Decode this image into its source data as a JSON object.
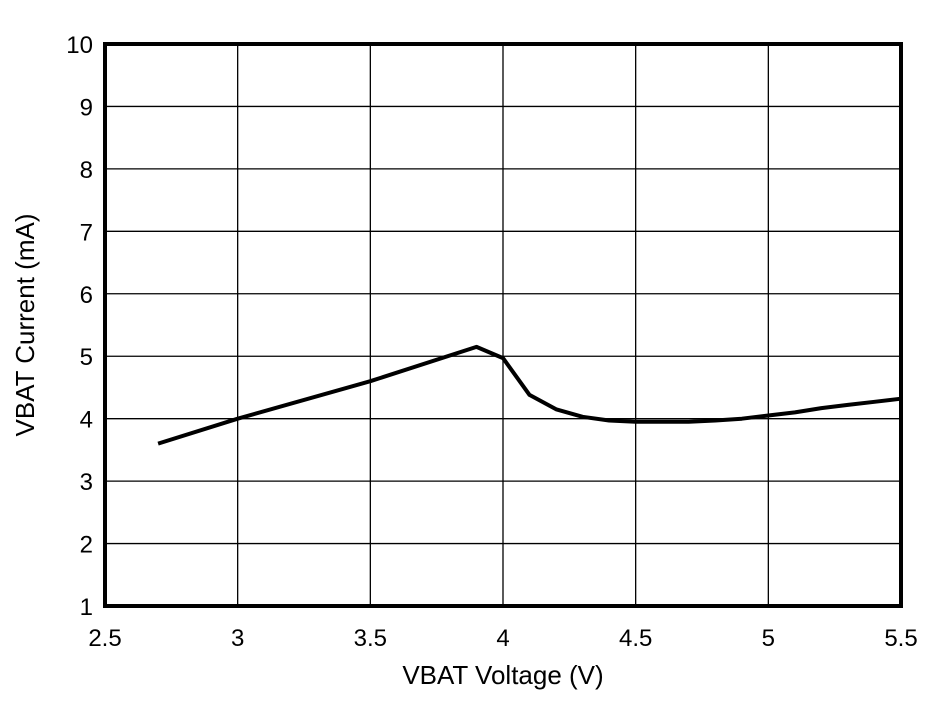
{
  "chart_data": {
    "type": "line",
    "title": "",
    "xlabel": "VBAT Voltage (V)",
    "ylabel": "VBAT Current (mA)",
    "xlim": [
      2.5,
      5.5
    ],
    "ylim": [
      1,
      10
    ],
    "xticks": [
      2.5,
      3,
      3.5,
      4,
      4.5,
      5,
      5.5
    ],
    "yticks": [
      1,
      2,
      3,
      4,
      5,
      6,
      7,
      8,
      9,
      10
    ],
    "grid": true,
    "legend": null,
    "series": [
      {
        "name": "VBAT Current",
        "color": "#000000",
        "x": [
          2.7,
          3.0,
          3.5,
          3.9,
          4.0,
          4.1,
          4.2,
          4.3,
          4.4,
          4.5,
          4.6,
          4.7,
          4.8,
          4.9,
          5.0,
          5.1,
          5.2,
          5.3,
          5.4,
          5.5
        ],
        "y": [
          3.6,
          4.0,
          4.6,
          5.15,
          4.97,
          4.38,
          4.15,
          4.03,
          3.97,
          3.95,
          3.95,
          3.95,
          3.97,
          4.0,
          4.05,
          4.1,
          4.17,
          4.22,
          4.27,
          4.32
        ]
      }
    ]
  },
  "colors": {
    "background": "#ffffff",
    "line": "#000000",
    "grid": "#000000"
  }
}
